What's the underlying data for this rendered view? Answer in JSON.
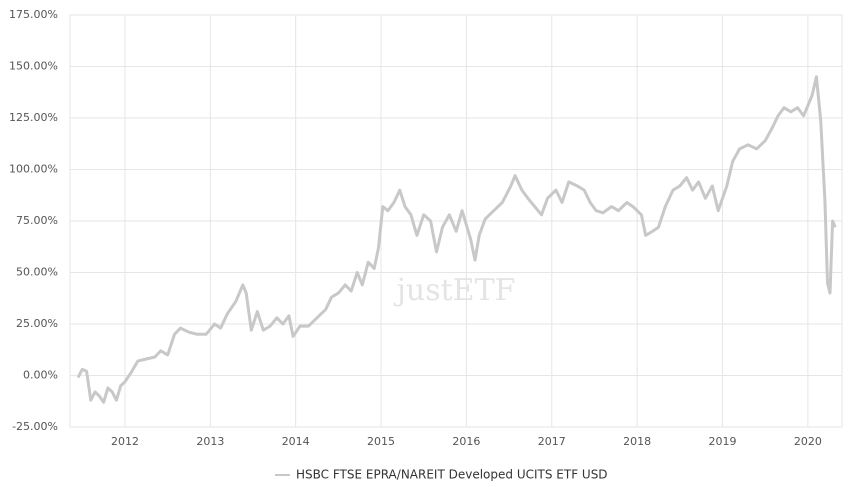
{
  "chart_data": {
    "type": "line",
    "watermark": "justETF",
    "xlim": [
      2011.356,
      2020.4
    ],
    "xticks": [
      2012,
      2013,
      2014,
      2015,
      2016,
      2017,
      2018,
      2019,
      2020
    ],
    "ylim": [
      -25,
      175
    ],
    "yticks": [
      {
        "value": -25,
        "label": "-25.00%"
      },
      {
        "value": 0,
        "label": "0.00%"
      },
      {
        "value": 25,
        "label": "25.00%"
      },
      {
        "value": 50,
        "label": "50.00%"
      },
      {
        "value": 75,
        "label": "75.00%"
      },
      {
        "value": 100,
        "label": "100.00%"
      },
      {
        "value": 125,
        "label": "125.00%"
      },
      {
        "value": 150,
        "label": "150.00%"
      },
      {
        "value": 175,
        "label": "175.00%"
      }
    ],
    "grid": true,
    "legend": "bottom",
    "x": [
      2011.45,
      2011.5,
      2011.55,
      2011.6,
      2011.65,
      2011.7,
      2011.75,
      2011.8,
      2011.85,
      2011.9,
      2011.95,
      2012.0,
      2012.08,
      2012.15,
      2012.25,
      2012.35,
      2012.42,
      2012.5,
      2012.58,
      2012.65,
      2012.75,
      2012.85,
      2012.95,
      2013.05,
      2013.12,
      2013.2,
      2013.3,
      2013.38,
      2013.42,
      2013.48,
      2013.55,
      2013.62,
      2013.7,
      2013.78,
      2013.85,
      2013.92,
      2013.97,
      2014.05,
      2014.15,
      2014.25,
      2014.35,
      2014.42,
      2014.5,
      2014.58,
      2014.65,
      2014.72,
      2014.78,
      2014.85,
      2014.92,
      2014.97,
      2015.02,
      2015.08,
      2015.15,
      2015.22,
      2015.28,
      2015.35,
      2015.42,
      2015.5,
      2015.58,
      2015.65,
      2015.72,
      2015.8,
      2015.88,
      2015.95,
      2016.05,
      2016.1,
      2016.15,
      2016.22,
      2016.32,
      2016.42,
      2016.52,
      2016.57,
      2016.65,
      2016.72,
      2016.8,
      2016.88,
      2016.95,
      2017.05,
      2017.12,
      2017.2,
      2017.3,
      2017.38,
      2017.45,
      2017.52,
      2017.6,
      2017.7,
      2017.78,
      2017.88,
      2017.95,
      2018.05,
      2018.1,
      2018.18,
      2018.25,
      2018.33,
      2018.42,
      2018.5,
      2018.58,
      2018.65,
      2018.72,
      2018.8,
      2018.88,
      2018.95,
      2019.05,
      2019.12,
      2019.2,
      2019.3,
      2019.4,
      2019.5,
      2019.58,
      2019.65,
      2019.72,
      2019.8,
      2019.88,
      2019.95,
      2020.05,
      2020.1,
      2020.15,
      2020.2,
      2020.23,
      2020.26,
      2020.29,
      2020.32
    ],
    "series": [
      {
        "name": "HSBC FTSE EPRA/NAREIT Developed UCITS ETF USD",
        "color": "#c8c8c8",
        "values": [
          -1,
          3,
          2,
          -12,
          -8,
          -10,
          -13,
          -6,
          -8,
          -12,
          -5,
          -3,
          2,
          7,
          8,
          9,
          12,
          10,
          20,
          23,
          21,
          20,
          20,
          25,
          23,
          30,
          36,
          44,
          40,
          22,
          31,
          22,
          24,
          28,
          25,
          29,
          19,
          24,
          24,
          28,
          32,
          38,
          40,
          44,
          41,
          50,
          44,
          55,
          52,
          62,
          82,
          80,
          84,
          90,
          82,
          78,
          68,
          78,
          75,
          60,
          72,
          78,
          70,
          80,
          66,
          56,
          68,
          76,
          80,
          84,
          92,
          97,
          90,
          86,
          82,
          78,
          86,
          90,
          84,
          94,
          92,
          90,
          84,
          80,
          79,
          82,
          80,
          84,
          82,
          78,
          68,
          70,
          72,
          82,
          90,
          92,
          96,
          90,
          94,
          86,
          92,
          80,
          92,
          104,
          110,
          112,
          110,
          114,
          120,
          126,
          130,
          128,
          130,
          126,
          136,
          145,
          124,
          85,
          45,
          40,
          75,
          72
        ]
      }
    ]
  }
}
